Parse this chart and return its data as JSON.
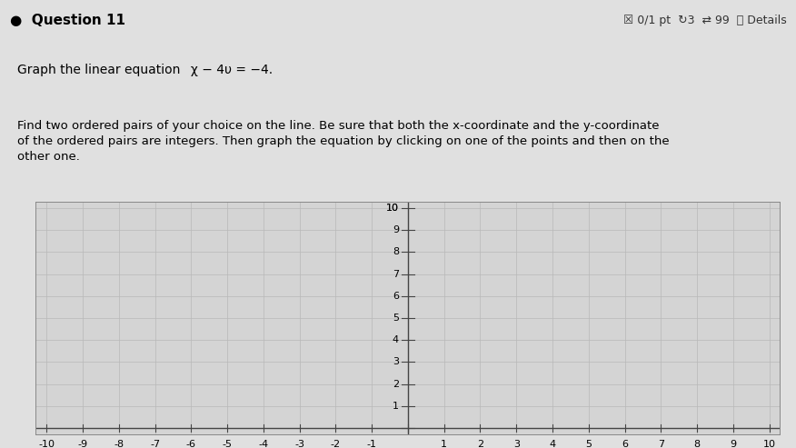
{
  "title": "Question 11",
  "score_text": "☒ 0/1 pt ↻3 ⇄ 99 ⓘ Details",
  "equation_text": "Graph the linear equation  x − 4y = −4.",
  "description_line1": "Find two ordered pairs of your choice on the line. Be sure that both the x-coordinate and the y-coordinate",
  "description_line2": "of the ordered pairs are integers. Then graph the equation by clicking on one of the points and then on the",
  "description_line3": "other one.",
  "xmin": -10,
  "xmax": 10,
  "ymin": 0,
  "ymax": 10,
  "grid_color": "#b8b8b8",
  "axis_color": "#444444",
  "bg_color": "#d4d4d4",
  "outer_bg": "#e0e0e0",
  "header_bg": "#cccccc",
  "y_tick_labels": [
    1,
    2,
    3,
    4,
    5,
    6,
    7,
    8,
    9,
    10
  ],
  "x_tick_labels": [
    -10,
    -9,
    -8,
    -7,
    -6,
    -5,
    -4,
    -3,
    -2,
    -1,
    1,
    2,
    3,
    4,
    5,
    6,
    7,
    8,
    9,
    10
  ],
  "label_fontsize": 8,
  "title_fontsize": 11,
  "eq_fontsize": 10,
  "desc_fontsize": 9.5
}
